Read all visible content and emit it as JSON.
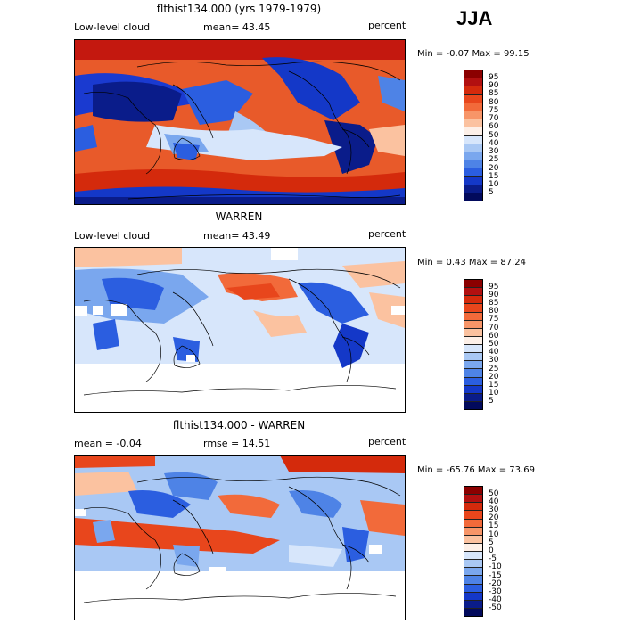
{
  "season": "JJA",
  "panels": [
    {
      "title": "flthist134.000 (yrs 1979-1979)",
      "left_label": "Low-level cloud",
      "mid_label": "mean=  43.45",
      "right_label": "percent",
      "minmax": "Min =   -0.07 Max =   99.15",
      "levels": [
        "95",
        "90",
        "85",
        "80",
        "75",
        "70",
        "60",
        "50",
        "40",
        "30",
        "25",
        "20",
        "15",
        "10",
        "5"
      ],
      "colors": [
        "#8b0000",
        "#b21010",
        "#d42a0c",
        "#e8461c",
        "#f26a3a",
        "#f79568",
        "#fbc2a0",
        "#fdf0e8",
        "#d7e6fb",
        "#a9c8f4",
        "#7aa7ee",
        "#4e83e6",
        "#2b5ee0",
        "#1438c8",
        "#0a1c8a",
        "#020a5c"
      ]
    },
    {
      "title": "WARREN",
      "left_label": "Low-level cloud",
      "mid_label": "mean=  43.49",
      "right_label": "percent",
      "minmax": "Min =    0.43 Max =   87.24",
      "levels": [
        "95",
        "90",
        "85",
        "80",
        "75",
        "70",
        "60",
        "50",
        "40",
        "30",
        "25",
        "20",
        "15",
        "10",
        "5"
      ],
      "colors": [
        "#8b0000",
        "#b21010",
        "#d42a0c",
        "#e8461c",
        "#f26a3a",
        "#f79568",
        "#fbc2a0",
        "#fdf0e8",
        "#d7e6fb",
        "#a9c8f4",
        "#7aa7ee",
        "#4e83e6",
        "#2b5ee0",
        "#1438c8",
        "#0a1c8a",
        "#020a5c"
      ]
    },
    {
      "title": "flthist134.000 - WARREN",
      "left_label": "mean =   -0.04",
      "mid_label": "rmse =   14.51",
      "right_label": "percent",
      "minmax": "Min =  -65.76 Max =   73.69",
      "levels": [
        "50",
        "40",
        "30",
        "20",
        "15",
        "10",
        "5",
        "0",
        "-5",
        "-10",
        "-15",
        "-20",
        "-30",
        "-40",
        "-50"
      ],
      "colors": [
        "#8b0000",
        "#b21010",
        "#d42a0c",
        "#e8461c",
        "#f26a3a",
        "#f79568",
        "#fbc2a0",
        "#fdf0e8",
        "#d7e6fb",
        "#a9c8f4",
        "#7aa7ee",
        "#4e83e6",
        "#2b5ee0",
        "#1438c8",
        "#0a1c8a",
        "#020a5c"
      ]
    }
  ]
}
